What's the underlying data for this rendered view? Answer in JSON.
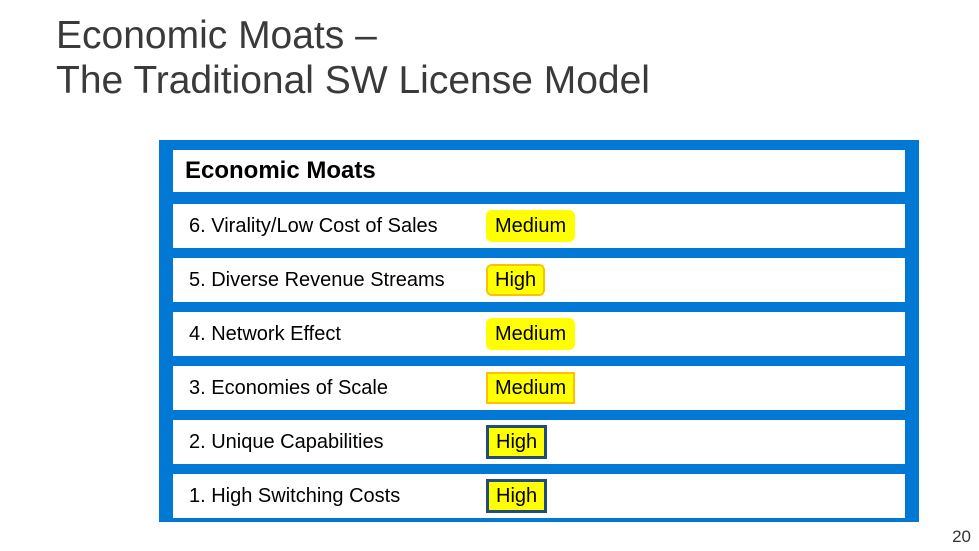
{
  "title_line1": "Economic Moats –",
  "title_line2": "The Traditional SW License Model",
  "panel": {
    "header": "Economic Moats",
    "background_color": "#0078d4",
    "row_bg": "#ffffff",
    "rows": [
      {
        "label": "6. Virality/Low Cost of Sales",
        "rating": "Medium",
        "badge_bg": "#ffff00",
        "badge_border": "#ffff00",
        "shape": "rounded"
      },
      {
        "label": "5. Diverse Revenue Streams",
        "rating": "High",
        "badge_bg": "#ffff00",
        "badge_border": "#ffc000",
        "shape": "rounded"
      },
      {
        "label": "4. Network Effect",
        "rating": "Medium",
        "badge_bg": "#ffff00",
        "badge_border": "#ffff00",
        "shape": "rounded"
      },
      {
        "label": "3. Economies of Scale",
        "rating": "Medium",
        "badge_bg": "#ffff00",
        "badge_border": "#ffc000",
        "shape": "rect"
      },
      {
        "label": "2. Unique Capabilities",
        "rating": "High",
        "badge_bg": "#ffff00",
        "badge_border": "#1f4e79",
        "shape": "rect"
      },
      {
        "label": "1. High Switching Costs",
        "rating": "High",
        "badge_bg": "#ffff00",
        "badge_border": "#1f4e79",
        "shape": "rect"
      }
    ]
  },
  "page_number": "20",
  "style": {
    "title_color": "#3a3a3a",
    "title_fontsize": 39,
    "header_fontsize": 24,
    "row_fontsize": 20,
    "badge_fontsize": 20,
    "border_width_thin": 2,
    "border_width_thick": 3
  }
}
